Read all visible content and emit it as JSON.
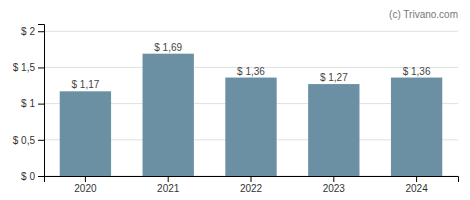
{
  "chart_data": {
    "type": "bar",
    "categories": [
      "2020",
      "2021",
      "2022",
      "2023",
      "2024"
    ],
    "values": [
      1.17,
      1.69,
      1.36,
      1.27,
      1.36
    ],
    "value_labels": [
      "$ 1,17",
      "$ 1,69",
      "$ 1,36",
      "$ 1,27",
      "$ 1,36"
    ],
    "data_labels": true,
    "color": "#6b8fa3",
    "ylim": [
      0,
      2.1
    ],
    "yticks": [
      {
        "value": 0,
        "label": "$ 0"
      },
      {
        "value": 0.5,
        "label": "$ 0,5"
      },
      {
        "value": 1.0,
        "label": "$ 1"
      },
      {
        "value": 1.5,
        "label": "$ 1,5"
      },
      {
        "value": 2.0,
        "label": "$ 2"
      }
    ],
    "grid": true,
    "annotations": [
      "(c) Trivano.com"
    ]
  }
}
